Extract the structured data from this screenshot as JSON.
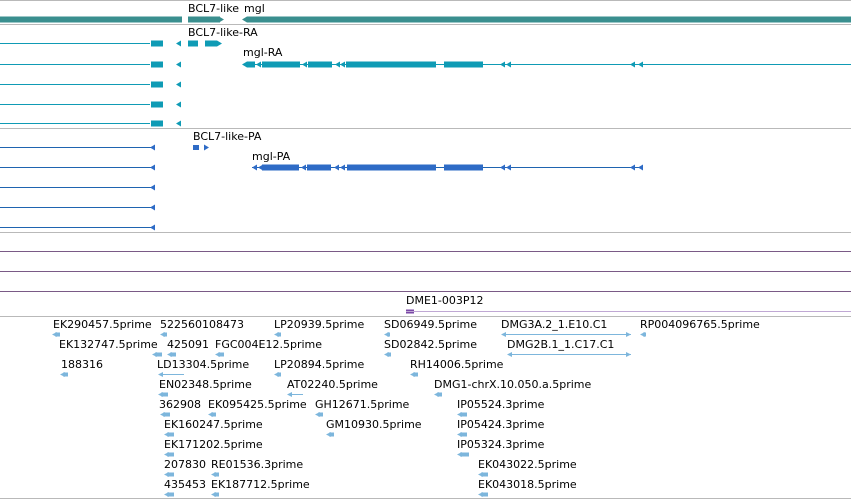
{
  "colors": {
    "gene": "#3a8f8f",
    "rna": "#0f9bb5",
    "protein": "#2e6bc6",
    "proteinline": "#1f64b0",
    "est": "#7db6dc",
    "primer": "#7a48a6"
  },
  "tracks": {
    "gene": {
      "labels": [
        "BCL7-like",
        "mgl"
      ]
    },
    "rna": {
      "labels": [
        "BCL7-like-RA",
        "mgl-RA"
      ]
    },
    "protein": {
      "labels": [
        "BCL7-like-PA",
        "mgl-PA"
      ]
    },
    "primer": {
      "label": "DME1-003P12"
    }
  },
  "est_labels": [
    "EK290457.5prime",
    "522560108473",
    "LP20939.5prime",
    "SD06949.5prime",
    "DMG3A.2_1.E10.C1",
    "RP004096765.5prime",
    "EK132747.5prime",
    "425091",
    "FGC004E12.5prime",
    "SD02842.5prime",
    "DMG2B.1_1.C17.C1",
    "188316",
    "LD13304.5prime",
    "LP20894.5prime",
    "RH14006.5prime",
    "EN02348.5prime",
    "AT02240.5prime",
    "DMG1-chrX.10.050.a.5prime",
    "362908",
    "EK095425.5prime",
    "GH12671.5prime",
    "IP05524.3prime",
    "EK160247.5prime",
    "GM10930.5prime",
    "IP05424.3prime",
    "EK171202.5prime",
    "IP05324.3prime",
    "207830",
    "RE01536.3prime",
    "EK043022.5prime",
    "435453",
    "EK187712.5prime",
    "EK043018.5prime"
  ]
}
